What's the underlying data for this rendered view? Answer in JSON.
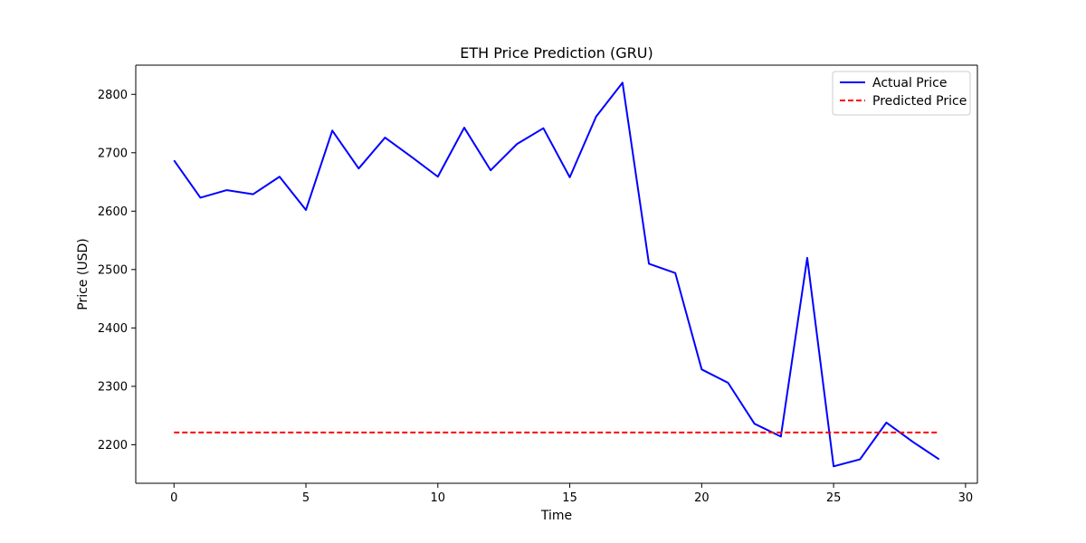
{
  "chart_data": {
    "type": "line",
    "title": "ETH Price Prediction (GRU)",
    "xlabel": "Time",
    "ylabel": "Price (USD)",
    "xlim": [
      -1.45,
      30.45
    ],
    "ylim": [
      2134,
      2850
    ],
    "x_ticks": [
      0,
      5,
      10,
      15,
      20,
      25,
      30
    ],
    "y_ticks": [
      2200,
      2300,
      2400,
      2500,
      2600,
      2700,
      2800
    ],
    "grid": false,
    "legend_position": "top-right",
    "x": [
      0,
      1,
      2,
      3,
      4,
      5,
      6,
      7,
      8,
      9,
      10,
      11,
      12,
      13,
      14,
      15,
      16,
      17,
      18,
      19,
      20,
      21,
      22,
      23,
      24,
      25,
      26,
      27,
      28,
      29
    ],
    "series": [
      {
        "name": "Actual Price",
        "color": "#0000ff",
        "style": "solid",
        "values": [
          2687,
          2623,
          2636,
          2629,
          2659,
          2602,
          2738,
          2673,
          2726,
          2693,
          2659,
          2743,
          2670,
          2715,
          2742,
          2658,
          2762,
          2820,
          2510,
          2494,
          2329,
          2306,
          2236,
          2214,
          2520,
          2163,
          2175,
          2238,
          2205,
          2175
        ]
      },
      {
        "name": "Predicted Price",
        "color": "#ff0000",
        "style": "dashed",
        "values": [
          2221,
          2221,
          2221,
          2221,
          2221,
          2221,
          2221,
          2221,
          2221,
          2221,
          2221,
          2221,
          2221,
          2221,
          2221,
          2221,
          2221,
          2221,
          2221,
          2221,
          2221,
          2221,
          2221,
          2221,
          2221,
          2221,
          2221,
          2221,
          2221,
          2221
        ]
      }
    ]
  }
}
